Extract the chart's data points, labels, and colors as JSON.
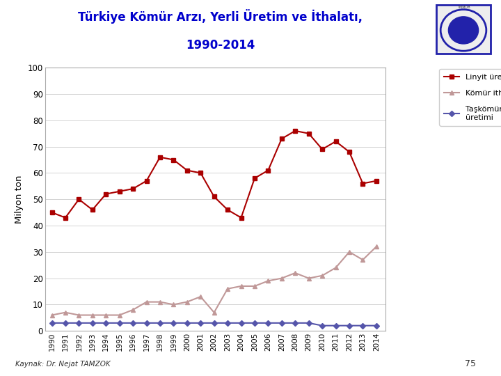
{
  "title_line1": "Türkiye Kömür Arzı, Yerli Üretim ve İthalatı,",
  "title_line2": "1990-2014",
  "title_color": "#0000CC",
  "title_bg_color": "#FFFF66",
  "white_bg": "#FFFFFF",
  "ylabel": "Milyon ton",
  "source": "Kaynak: Dr. Nejat TAMZOK",
  "page_num": "75",
  "years": [
    1990,
    1991,
    1992,
    1993,
    1994,
    1995,
    1996,
    1997,
    1998,
    1999,
    2000,
    2001,
    2002,
    2003,
    2004,
    2005,
    2006,
    2007,
    2008,
    2009,
    2010,
    2011,
    2012,
    2013,
    2014
  ],
  "linyit": [
    45,
    43,
    50,
    46,
    52,
    53,
    54,
    57,
    66,
    65,
    61,
    60,
    51,
    46,
    43,
    58,
    61,
    73,
    76,
    75,
    69,
    72,
    68,
    56,
    57
  ],
  "komur_ithalat": [
    6,
    7,
    6,
    6,
    6,
    6,
    8,
    11,
    11,
    10,
    11,
    13,
    7,
    16,
    17,
    17,
    19,
    20,
    22,
    20,
    21,
    24,
    30,
    27,
    32
  ],
  "taskkomuru": [
    3,
    3,
    3,
    3,
    3,
    3,
    3,
    3,
    3,
    3,
    3,
    3,
    3,
    3,
    3,
    3,
    3,
    3,
    3,
    3,
    2,
    2,
    2,
    2,
    2
  ],
  "linyit_color": "#AA0000",
  "komur_color": "#C09898",
  "taskkomuru_color": "#5555AA",
  "ylim": [
    0,
    100
  ],
  "yticks": [
    0,
    10,
    20,
    30,
    40,
    50,
    60,
    70,
    80,
    90,
    100
  ],
  "legend_labels": [
    "Linyit üretimi",
    "Kömür ithalatı",
    "Taşkömürü\nüretimi"
  ]
}
